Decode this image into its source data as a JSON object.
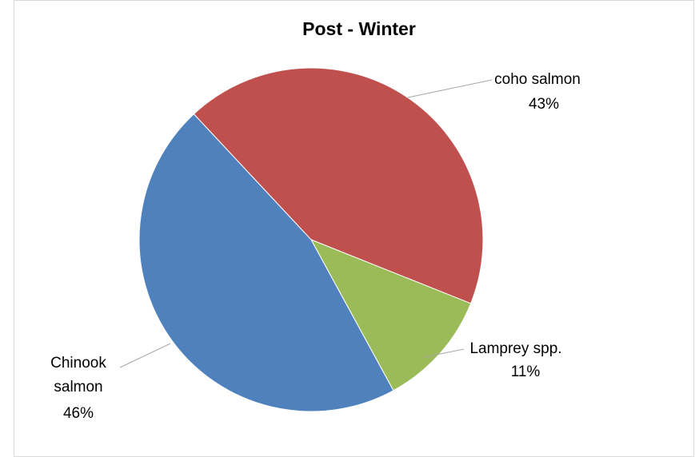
{
  "chart_data": {
    "type": "pie",
    "title": "Post - Winter",
    "categories": [
      "coho salmon",
      "Lamprey spp.",
      "Chinook salmon"
    ],
    "values": [
      43,
      11,
      46
    ],
    "value_labels": [
      "43%",
      "11%",
      "46%"
    ],
    "colors": [
      "#c0504d",
      "#9bbb59",
      "#4f81bd"
    ]
  }
}
